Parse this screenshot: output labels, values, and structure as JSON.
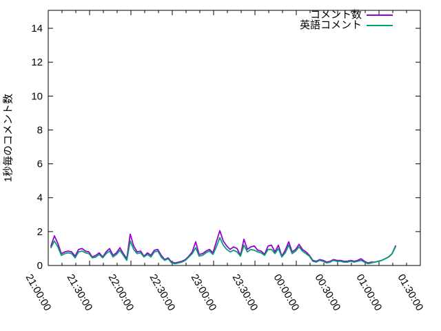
{
  "chart_data": {
    "type": "line",
    "title": "",
    "xlabel": "",
    "ylabel": "1秒毎のコメント数",
    "grid": false,
    "legend_position": "top-right-inside",
    "x_axis": {
      "tick_labels": [
        "21:00:00",
        "21:30:00",
        "22:00:00",
        "22:30:00",
        "23:00:00",
        "23:30:00",
        "00:00:00",
        "00:30:00",
        "01:00:00",
        "01:30:00"
      ],
      "major_step_minutes": 30,
      "minor_step_minutes": 10,
      "range_minutes_from_first_tick": [
        0,
        270
      ]
    },
    "y_axis": {
      "ticks": [
        0,
        2,
        4,
        6,
        8,
        10,
        12,
        14
      ],
      "ylim": [
        0,
        15.06
      ]
    },
    "series": [
      {
        "id": "comments",
        "name": "コメント数",
        "color": "#9400d3",
        "start_min": 2,
        "step_min": 2.5,
        "values": [
          1.15,
          1.75,
          1.3,
          0.7,
          0.8,
          0.85,
          0.8,
          0.55,
          0.95,
          1.0,
          0.85,
          0.8,
          0.5,
          0.6,
          0.75,
          0.5,
          0.8,
          1.0,
          0.6,
          0.75,
          1.05,
          0.7,
          0.4,
          1.85,
          1.15,
          0.8,
          0.85,
          0.55,
          0.75,
          0.6,
          0.9,
          0.95,
          0.6,
          0.35,
          0.45,
          0.2,
          0.15,
          0.2,
          0.25,
          0.35,
          0.55,
          0.8,
          1.4,
          0.65,
          0.7,
          0.85,
          0.95,
          0.75,
          1.4,
          2.05,
          1.45,
          1.15,
          0.95,
          1.1,
          1.0,
          0.6,
          1.55,
          0.95,
          1.1,
          1.15,
          0.9,
          0.85,
          0.65,
          1.15,
          1.2,
          0.8,
          1.2,
          0.55,
          0.9,
          1.4,
          0.8,
          0.95,
          1.25,
          0.95,
          0.8,
          0.6,
          0.3,
          0.25,
          0.35,
          0.3,
          0.2,
          0.25,
          0.35,
          0.3,
          0.3,
          0.25,
          0.25,
          0.3,
          0.25,
          0.3,
          0.4,
          0.25,
          0.15,
          0.2,
          0.2,
          0.25,
          0.3,
          0.4,
          0.5,
          0.7,
          1.15
        ]
      },
      {
        "id": "english-comments",
        "name": "英語コメント",
        "color": "#009e73",
        "start_min": 2,
        "step_min": 2.5,
        "values": [
          1.05,
          1.45,
          1.1,
          0.6,
          0.7,
          0.75,
          0.7,
          0.45,
          0.8,
          0.85,
          0.75,
          0.7,
          0.45,
          0.5,
          0.65,
          0.45,
          0.7,
          0.85,
          0.5,
          0.65,
          0.9,
          0.6,
          0.3,
          1.45,
          0.95,
          0.7,
          0.75,
          0.5,
          0.65,
          0.5,
          0.8,
          0.85,
          0.5,
          0.3,
          0.4,
          0.15,
          0.1,
          0.15,
          0.2,
          0.3,
          0.5,
          0.7,
          1.05,
          0.55,
          0.6,
          0.75,
          0.85,
          0.65,
          1.1,
          1.65,
          1.2,
          0.95,
          0.8,
          0.9,
          0.8,
          0.55,
          1.2,
          0.8,
          0.95,
          0.9,
          0.8,
          0.75,
          0.6,
          0.95,
          0.95,
          0.7,
          1.0,
          0.5,
          0.75,
          1.2,
          0.7,
          0.85,
          1.1,
          0.85,
          0.7,
          0.55,
          0.25,
          0.2,
          0.3,
          0.25,
          0.15,
          0.2,
          0.3,
          0.25,
          0.25,
          0.2,
          0.2,
          0.25,
          0.2,
          0.25,
          0.3,
          0.2,
          0.1,
          0.15,
          0.2,
          0.25,
          0.3,
          0.4,
          0.5,
          0.7,
          1.1
        ]
      }
    ]
  }
}
